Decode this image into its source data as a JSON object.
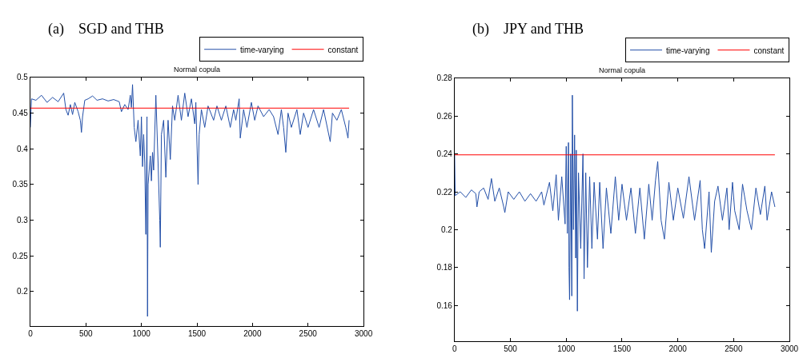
{
  "chart_data": [
    {
      "type": "line",
      "title": "(a)    SGD and THB",
      "subtitle": "Normal copula",
      "xlim": [
        0,
        3000
      ],
      "xticks": [
        0,
        500,
        1000,
        1500,
        2000,
        2500,
        3000
      ],
      "ylim": [
        0.152,
        0.5
      ],
      "yticks": [
        0.2,
        0.25,
        0.3,
        0.35,
        0.4,
        0.45,
        0.5
      ],
      "grid": false,
      "legend": "top right",
      "marker": "none",
      "line_style": "solid",
      "series": [
        {
          "name": "time-varying",
          "color": "#2450a8",
          "x": [
            0,
            10,
            50,
            100,
            150,
            200,
            250,
            300,
            320,
            340,
            360,
            380,
            400,
            430,
            450,
            460,
            470,
            490,
            520,
            560,
            600,
            650,
            700,
            750,
            800,
            820,
            850,
            880,
            900,
            910,
            920,
            935,
            950,
            970,
            990,
            1000,
            1010,
            1020,
            1030,
            1040,
            1050,
            1055,
            1060,
            1080,
            1090,
            1100,
            1110,
            1130,
            1150,
            1165,
            1170,
            1180,
            1200,
            1220,
            1240,
            1260,
            1280,
            1300,
            1330,
            1360,
            1390,
            1420,
            1450,
            1480,
            1490,
            1510,
            1520,
            1540,
            1570,
            1600,
            1650,
            1680,
            1720,
            1760,
            1800,
            1830,
            1850,
            1880,
            1890,
            1920,
            1950,
            1990,
            2020,
            2050,
            2100,
            2150,
            2190,
            2230,
            2260,
            2280,
            2300,
            2320,
            2350,
            2400,
            2430,
            2460,
            2500,
            2550,
            2600,
            2640,
            2700,
            2720,
            2760,
            2800,
            2840,
            2860,
            2870
          ],
          "values": [
            0.43,
            0.47,
            0.468,
            0.475,
            0.465,
            0.472,
            0.466,
            0.478,
            0.455,
            0.447,
            0.462,
            0.448,
            0.465,
            0.452,
            0.44,
            0.423,
            0.445,
            0.468,
            0.47,
            0.474,
            0.468,
            0.47,
            0.467,
            0.469,
            0.466,
            0.452,
            0.462,
            0.455,
            0.475,
            0.458,
            0.49,
            0.43,
            0.41,
            0.44,
            0.39,
            0.445,
            0.375,
            0.42,
            0.38,
            0.28,
            0.445,
            0.165,
            0.35,
            0.39,
            0.355,
            0.395,
            0.37,
            0.475,
            0.38,
            0.3,
            0.262,
            0.42,
            0.44,
            0.36,
            0.44,
            0.385,
            0.46,
            0.44,
            0.475,
            0.44,
            0.478,
            0.445,
            0.47,
            0.435,
            0.465,
            0.35,
            0.42,
            0.455,
            0.43,
            0.46,
            0.44,
            0.46,
            0.44,
            0.46,
            0.43,
            0.455,
            0.44,
            0.47,
            0.415,
            0.455,
            0.43,
            0.465,
            0.44,
            0.46,
            0.445,
            0.455,
            0.445,
            0.42,
            0.455,
            0.43,
            0.395,
            0.45,
            0.43,
            0.455,
            0.42,
            0.45,
            0.43,
            0.455,
            0.43,
            0.455,
            0.41,
            0.45,
            0.44,
            0.455,
            0.43,
            0.415,
            0.44
          ]
        },
        {
          "name": "constant",
          "color": "#ff0000",
          "x": [
            0,
            2870
          ],
          "values": [
            0.457,
            0.457
          ]
        }
      ]
    },
    {
      "type": "line",
      "title": "(b)    JPY and THB",
      "subtitle": "Normal copula",
      "xlim": [
        0,
        3000
      ],
      "xticks": [
        0,
        500,
        1000,
        1500,
        2000,
        2500,
        3000
      ],
      "ylim": [
        0.141,
        0.28
      ],
      "yticks": [
        0.16,
        0.18,
        0.2,
        0.22,
        0.24,
        0.26,
        0.28
      ],
      "grid": false,
      "legend": "top right",
      "marker": "none",
      "line_style": "solid",
      "series": [
        {
          "name": "time-varying",
          "color": "#2450a8",
          "x": [
            0,
            5,
            50,
            100,
            150,
            190,
            200,
            220,
            260,
            300,
            330,
            360,
            400,
            440,
            450,
            480,
            530,
            580,
            630,
            680,
            730,
            780,
            800,
            850,
            880,
            910,
            930,
            960,
            990,
            1000,
            1010,
            1020,
            1025,
            1030,
            1040,
            1050,
            1055,
            1065,
            1075,
            1085,
            1090,
            1100,
            1110,
            1130,
            1150,
            1160,
            1175,
            1190,
            1210,
            1230,
            1250,
            1280,
            1300,
            1330,
            1360,
            1400,
            1440,
            1470,
            1500,
            1540,
            1580,
            1620,
            1660,
            1700,
            1740,
            1770,
            1800,
            1820,
            1850,
            1880,
            1920,
            1960,
            2000,
            2050,
            2100,
            2150,
            2200,
            2220,
            2240,
            2280,
            2300,
            2330,
            2360,
            2400,
            2440,
            2460,
            2490,
            2510,
            2550,
            2580,
            2620,
            2660,
            2700,
            2740,
            2780,
            2800,
            2840,
            2870
          ],
          "values": [
            0.24,
            0.218,
            0.22,
            0.217,
            0.221,
            0.219,
            0.212,
            0.22,
            0.222,
            0.216,
            0.227,
            0.215,
            0.222,
            0.212,
            0.209,
            0.22,
            0.216,
            0.22,
            0.215,
            0.219,
            0.215,
            0.22,
            0.213,
            0.225,
            0.21,
            0.229,
            0.205,
            0.228,
            0.203,
            0.244,
            0.198,
            0.246,
            0.18,
            0.163,
            0.24,
            0.165,
            0.271,
            0.2,
            0.25,
            0.185,
            0.242,
            0.157,
            0.23,
            0.19,
            0.24,
            0.174,
            0.23,
            0.18,
            0.228,
            0.19,
            0.225,
            0.195,
            0.225,
            0.19,
            0.222,
            0.198,
            0.228,
            0.205,
            0.224,
            0.205,
            0.222,
            0.198,
            0.222,
            0.195,
            0.224,
            0.205,
            0.226,
            0.236,
            0.205,
            0.195,
            0.225,
            0.205,
            0.222,
            0.206,
            0.228,
            0.205,
            0.226,
            0.2,
            0.19,
            0.22,
            0.188,
            0.215,
            0.223,
            0.205,
            0.222,
            0.2,
            0.225,
            0.21,
            0.2,
            0.224,
            0.21,
            0.2,
            0.222,
            0.208,
            0.223,
            0.205,
            0.22,
            0.212
          ]
        },
        {
          "name": "constant",
          "color": "#ff0000",
          "x": [
            0,
            2870
          ],
          "values": [
            0.2395,
            0.2395
          ]
        }
      ]
    }
  ]
}
